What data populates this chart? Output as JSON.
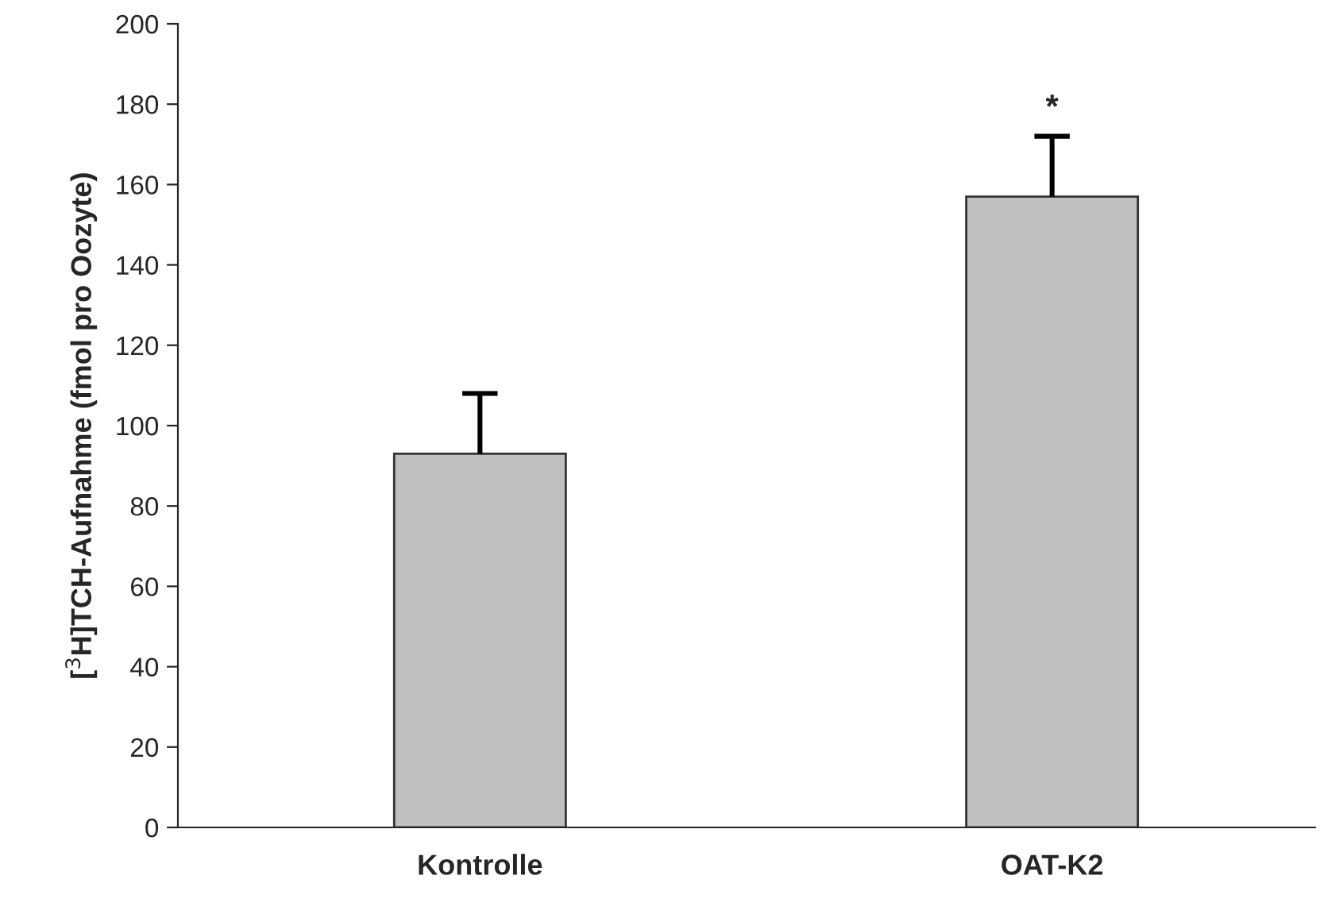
{
  "chart_data": {
    "type": "bar",
    "ylabel": "[$^{3}$H]TCH-Aufnahme (fmol pro Oozyte)",
    "categories": [
      "Kontrolle",
      "OAT-K2"
    ],
    "values": [
      93,
      157
    ],
    "errors": [
      [
        93,
        108
      ],
      [
        157,
        172
      ]
    ],
    "color": "#c0c0c0",
    "ylim": [
      0,
      200
    ],
    "yticks": [
      0,
      20,
      40,
      60,
      80,
      100,
      120,
      140,
      160,
      180,
      200
    ],
    "annotations": [
      "*"
    ],
    "grid": false
  }
}
